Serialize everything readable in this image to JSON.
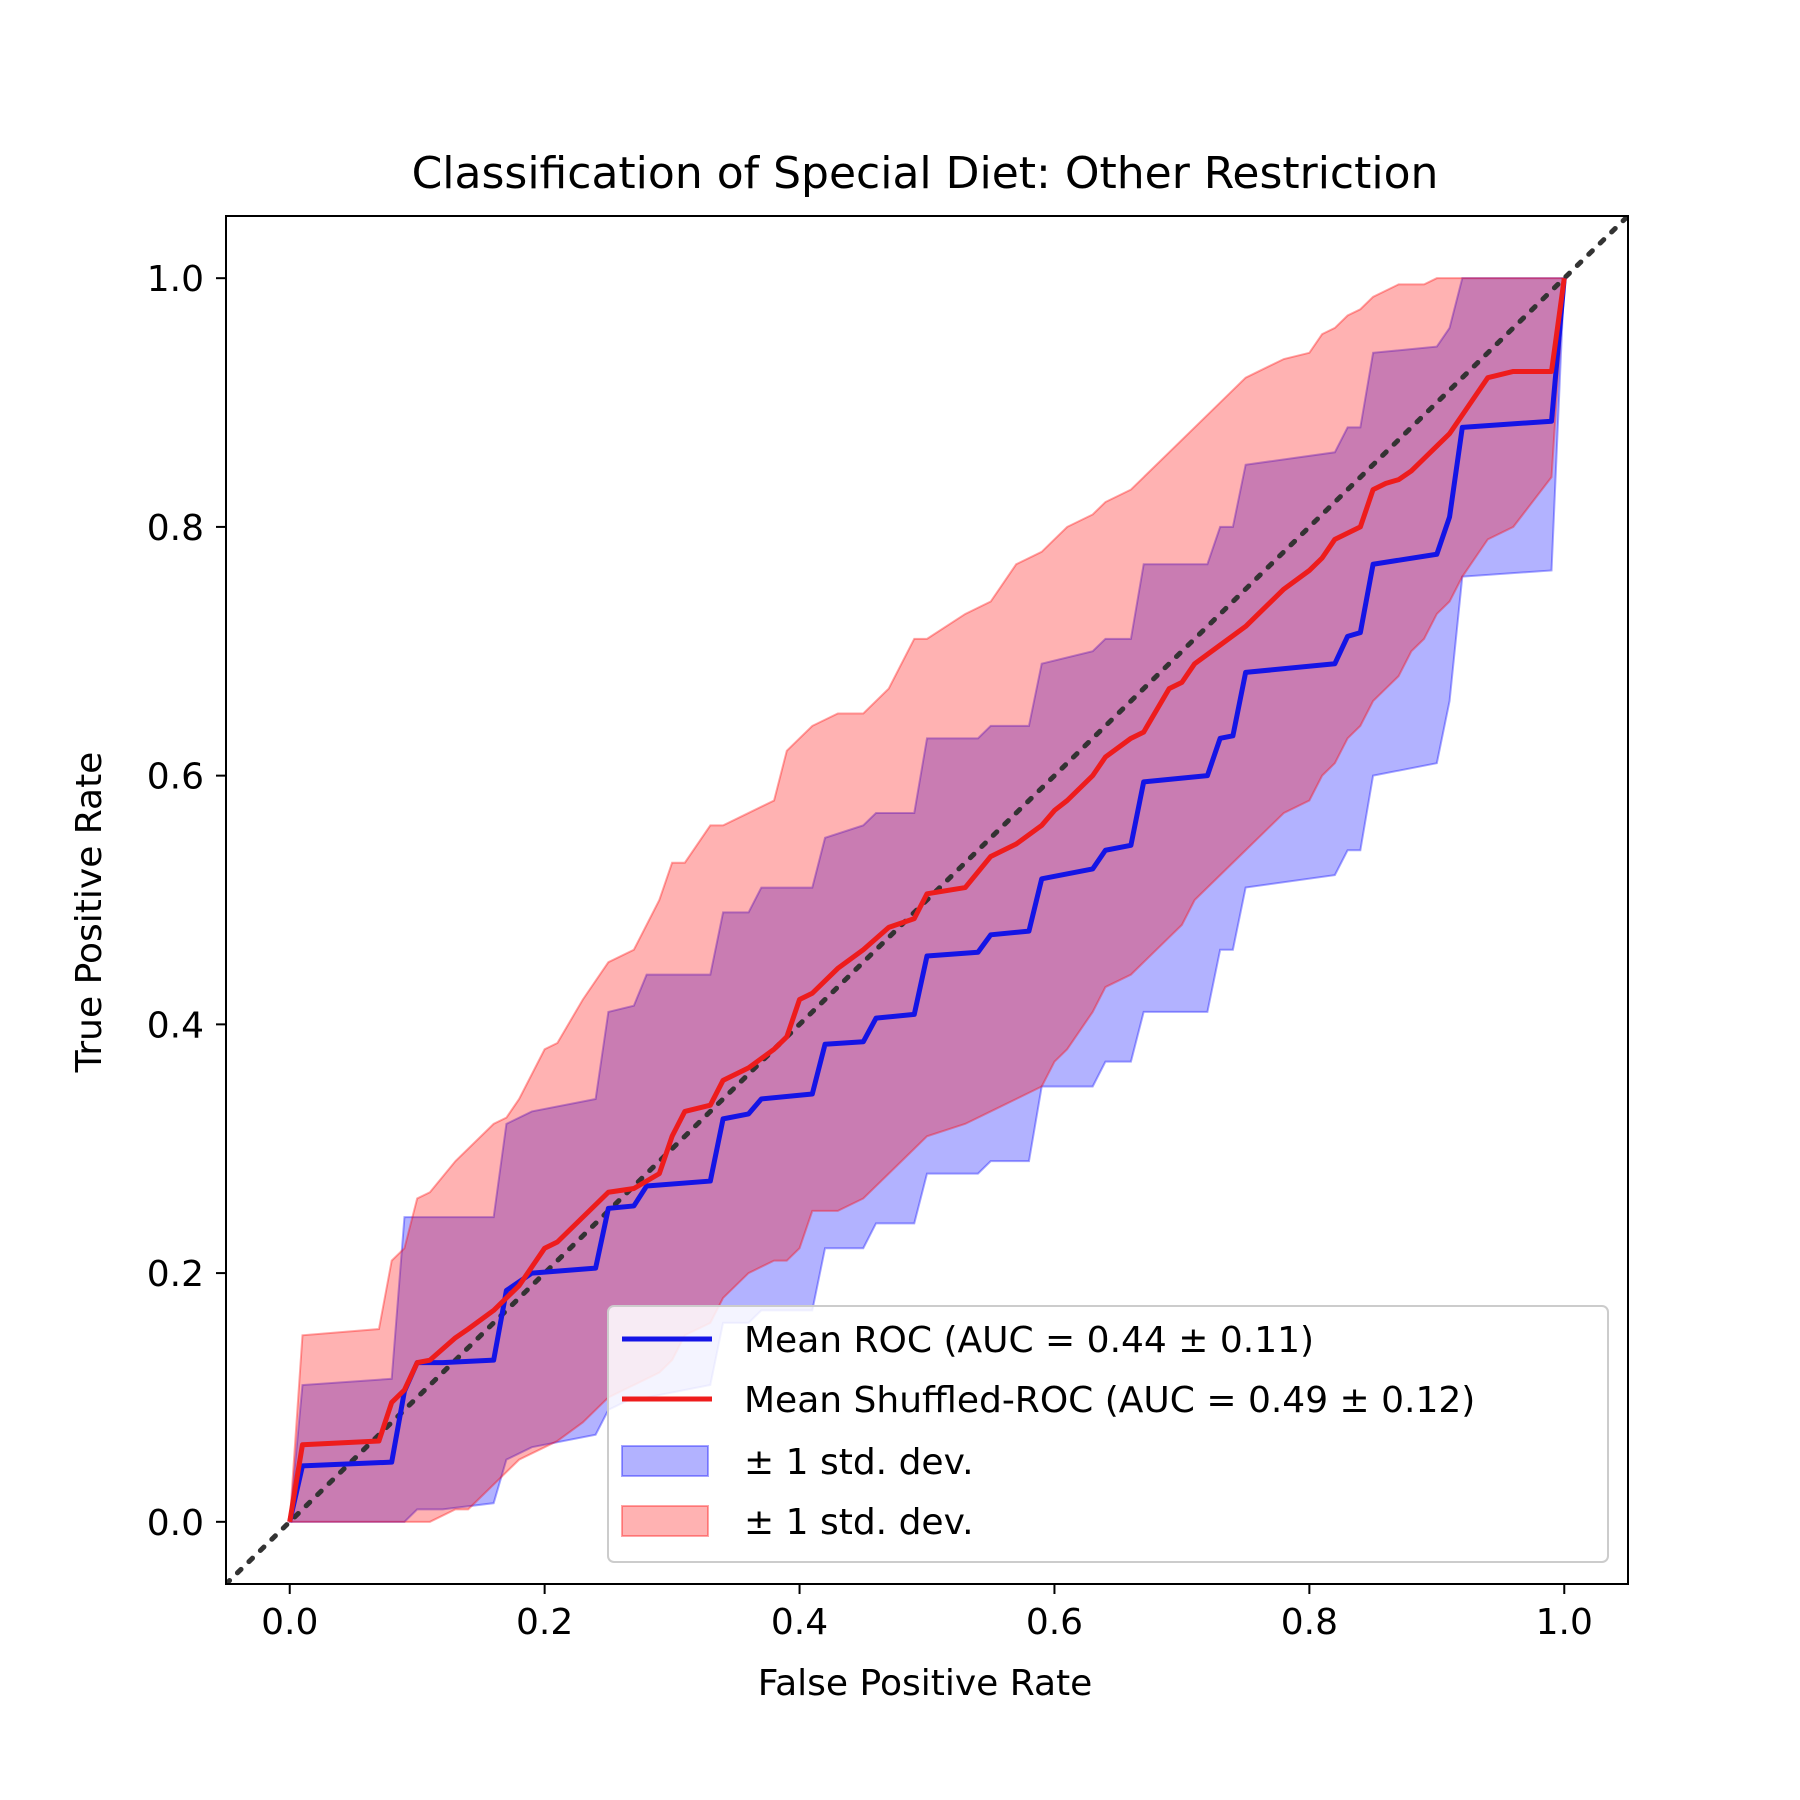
{
  "chart_data": {
    "type": "line",
    "title": "Classification of Special Diet: Other Restriction",
    "xlabel": "False Positive Rate",
    "ylabel": "True Positive Rate",
    "xlim": [
      -0.05,
      1.05
    ],
    "ylim": [
      -0.05,
      1.05
    ],
    "xticks": [
      "0.0",
      "0.2",
      "0.4",
      "0.6",
      "0.8",
      "1.0"
    ],
    "yticks": [
      "0.0",
      "0.2",
      "0.4",
      "0.6",
      "0.8",
      "1.0"
    ],
    "grid": false,
    "legend_position": "lower-right",
    "diagonal": {
      "style": "dotted",
      "color": "#333333",
      "x": [
        -0.05,
        1.05
      ],
      "y": [
        -0.05,
        1.05
      ]
    },
    "series": [
      {
        "name": "Mean ROC (AUC = 0.44 ± 0.11)",
        "color": "#1414e6",
        "x": [
          0,
          0.01,
          0.08,
          0.09,
          0.1,
          0.12,
          0.16,
          0.17,
          0.19,
          0.24,
          0.25,
          0.27,
          0.28,
          0.33,
          0.34,
          0.36,
          0.37,
          0.41,
          0.42,
          0.45,
          0.46,
          0.49,
          0.5,
          0.54,
          0.55,
          0.58,
          0.59,
          0.63,
          0.64,
          0.66,
          0.67,
          0.72,
          0.73,
          0.74,
          0.75,
          0.82,
          0.83,
          0.84,
          0.85,
          0.9,
          0.91,
          0.92,
          0.99,
          1.0
        ],
        "y": [
          0,
          0.045,
          0.048,
          0.105,
          0.128,
          0.128,
          0.13,
          0.186,
          0.2,
          0.204,
          0.252,
          0.254,
          0.27,
          0.274,
          0.324,
          0.328,
          0.34,
          0.344,
          0.384,
          0.386,
          0.405,
          0.408,
          0.455,
          0.458,
          0.472,
          0.475,
          0.517,
          0.525,
          0.54,
          0.544,
          0.595,
          0.6,
          0.63,
          0.632,
          0.683,
          0.69,
          0.712,
          0.715,
          0.77,
          0.778,
          0.808,
          0.88,
          0.885,
          1.0
        ]
      },
      {
        "name": "Mean Shuffled-ROC (AUC = 0.49 ± 0.12)",
        "color": "#ee1c1c",
        "x": [
          0,
          0.01,
          0.07,
          0.08,
          0.09,
          0.1,
          0.11,
          0.13,
          0.14,
          0.16,
          0.17,
          0.18,
          0.2,
          0.21,
          0.23,
          0.25,
          0.27,
          0.29,
          0.3,
          0.31,
          0.33,
          0.34,
          0.36,
          0.38,
          0.39,
          0.4,
          0.41,
          0.43,
          0.45,
          0.47,
          0.49,
          0.5,
          0.53,
          0.55,
          0.57,
          0.59,
          0.6,
          0.61,
          0.63,
          0.64,
          0.66,
          0.67,
          0.69,
          0.7,
          0.71,
          0.73,
          0.75,
          0.76,
          0.78,
          0.8,
          0.81,
          0.82,
          0.83,
          0.84,
          0.85,
          0.86,
          0.87,
          0.88,
          0.89,
          0.9,
          0.91,
          0.92,
          0.94,
          0.96,
          0.99,
          1.0
        ],
        "y": [
          0,
          0.062,
          0.065,
          0.096,
          0.106,
          0.128,
          0.13,
          0.148,
          0.155,
          0.17,
          0.18,
          0.19,
          0.22,
          0.225,
          0.245,
          0.265,
          0.268,
          0.28,
          0.31,
          0.33,
          0.335,
          0.355,
          0.365,
          0.38,
          0.39,
          0.42,
          0.425,
          0.445,
          0.46,
          0.478,
          0.485,
          0.505,
          0.51,
          0.535,
          0.545,
          0.56,
          0.572,
          0.58,
          0.6,
          0.615,
          0.63,
          0.635,
          0.67,
          0.675,
          0.69,
          0.705,
          0.72,
          0.73,
          0.75,
          0.765,
          0.775,
          0.79,
          0.795,
          0.8,
          0.83,
          0.835,
          0.838,
          0.845,
          0.855,
          0.865,
          0.875,
          0.89,
          0.92,
          0.925,
          0.925,
          1.0
        ]
      }
    ],
    "bands": [
      {
        "name": "± 1 std. dev.",
        "color": "#0000ff",
        "opacity": 0.3,
        "x": [
          0,
          0.01,
          0.08,
          0.09,
          0.1,
          0.12,
          0.16,
          0.17,
          0.19,
          0.24,
          0.25,
          0.27,
          0.28,
          0.33,
          0.34,
          0.36,
          0.37,
          0.41,
          0.42,
          0.45,
          0.46,
          0.49,
          0.5,
          0.54,
          0.55,
          0.58,
          0.59,
          0.63,
          0.64,
          0.66,
          0.67,
          0.72,
          0.73,
          0.74,
          0.75,
          0.82,
          0.83,
          0.84,
          0.85,
          0.9,
          0.91,
          0.92,
          0.99,
          1.0
        ],
        "upper": [
          0,
          0.11,
          0.115,
          0.245,
          0.245,
          0.245,
          0.245,
          0.32,
          0.33,
          0.34,
          0.41,
          0.415,
          0.44,
          0.44,
          0.49,
          0.49,
          0.51,
          0.51,
          0.55,
          0.56,
          0.57,
          0.57,
          0.63,
          0.63,
          0.64,
          0.64,
          0.69,
          0.7,
          0.71,
          0.71,
          0.77,
          0.77,
          0.8,
          0.8,
          0.85,
          0.86,
          0.88,
          0.88,
          0.94,
          0.945,
          0.96,
          1.0,
          1.0,
          1.0
        ],
        "lower": [
          0,
          0,
          0,
          0,
          0.01,
          0.01,
          0.015,
          0.05,
          0.06,
          0.07,
          0.09,
          0.1,
          0.1,
          0.11,
          0.16,
          0.16,
          0.17,
          0.17,
          0.22,
          0.22,
          0.24,
          0.24,
          0.28,
          0.28,
          0.29,
          0.29,
          0.35,
          0.35,
          0.37,
          0.37,
          0.41,
          0.41,
          0.46,
          0.46,
          0.51,
          0.52,
          0.54,
          0.54,
          0.6,
          0.61,
          0.66,
          0.76,
          0.765,
          1.0
        ]
      },
      {
        "name": "± 1 std. dev.",
        "color": "#ff0000",
        "opacity": 0.3,
        "x": [
          0,
          0.01,
          0.07,
          0.08,
          0.09,
          0.1,
          0.11,
          0.13,
          0.14,
          0.16,
          0.17,
          0.18,
          0.2,
          0.21,
          0.23,
          0.25,
          0.27,
          0.29,
          0.3,
          0.31,
          0.33,
          0.34,
          0.36,
          0.38,
          0.39,
          0.4,
          0.41,
          0.43,
          0.45,
          0.47,
          0.49,
          0.5,
          0.53,
          0.55,
          0.57,
          0.59,
          0.6,
          0.61,
          0.63,
          0.64,
          0.66,
          0.67,
          0.69,
          0.7,
          0.71,
          0.73,
          0.75,
          0.76,
          0.78,
          0.8,
          0.81,
          0.82,
          0.83,
          0.84,
          0.85,
          0.86,
          0.87,
          0.88,
          0.89,
          0.9,
          0.91,
          0.92,
          0.94,
          0.96,
          0.99,
          1.0
        ],
        "upper": [
          0,
          0.15,
          0.155,
          0.21,
          0.22,
          0.26,
          0.265,
          0.29,
          0.3,
          0.32,
          0.325,
          0.34,
          0.38,
          0.385,
          0.42,
          0.45,
          0.46,
          0.5,
          0.53,
          0.53,
          0.56,
          0.56,
          0.57,
          0.58,
          0.62,
          0.63,
          0.64,
          0.65,
          0.65,
          0.67,
          0.71,
          0.71,
          0.73,
          0.74,
          0.77,
          0.78,
          0.79,
          0.8,
          0.81,
          0.82,
          0.83,
          0.84,
          0.86,
          0.87,
          0.88,
          0.9,
          0.92,
          0.925,
          0.935,
          0.94,
          0.955,
          0.96,
          0.97,
          0.975,
          0.985,
          0.99,
          0.995,
          0.995,
          0.995,
          1.0,
          1.0,
          1.0,
          1.0,
          1.0,
          1.0,
          1.0
        ],
        "lower": [
          0,
          0,
          0,
          0,
          0,
          0,
          0,
          0.01,
          0.01,
          0.03,
          0.04,
          0.05,
          0.06,
          0.065,
          0.08,
          0.1,
          0.11,
          0.12,
          0.13,
          0.15,
          0.16,
          0.18,
          0.2,
          0.21,
          0.21,
          0.22,
          0.25,
          0.25,
          0.26,
          0.28,
          0.3,
          0.31,
          0.32,
          0.33,
          0.34,
          0.35,
          0.37,
          0.38,
          0.41,
          0.43,
          0.44,
          0.45,
          0.47,
          0.48,
          0.5,
          0.52,
          0.54,
          0.55,
          0.57,
          0.58,
          0.6,
          0.61,
          0.63,
          0.64,
          0.66,
          0.67,
          0.68,
          0.7,
          0.71,
          0.73,
          0.74,
          0.76,
          0.79,
          0.8,
          0.84,
          1.0
        ]
      }
    ]
  }
}
